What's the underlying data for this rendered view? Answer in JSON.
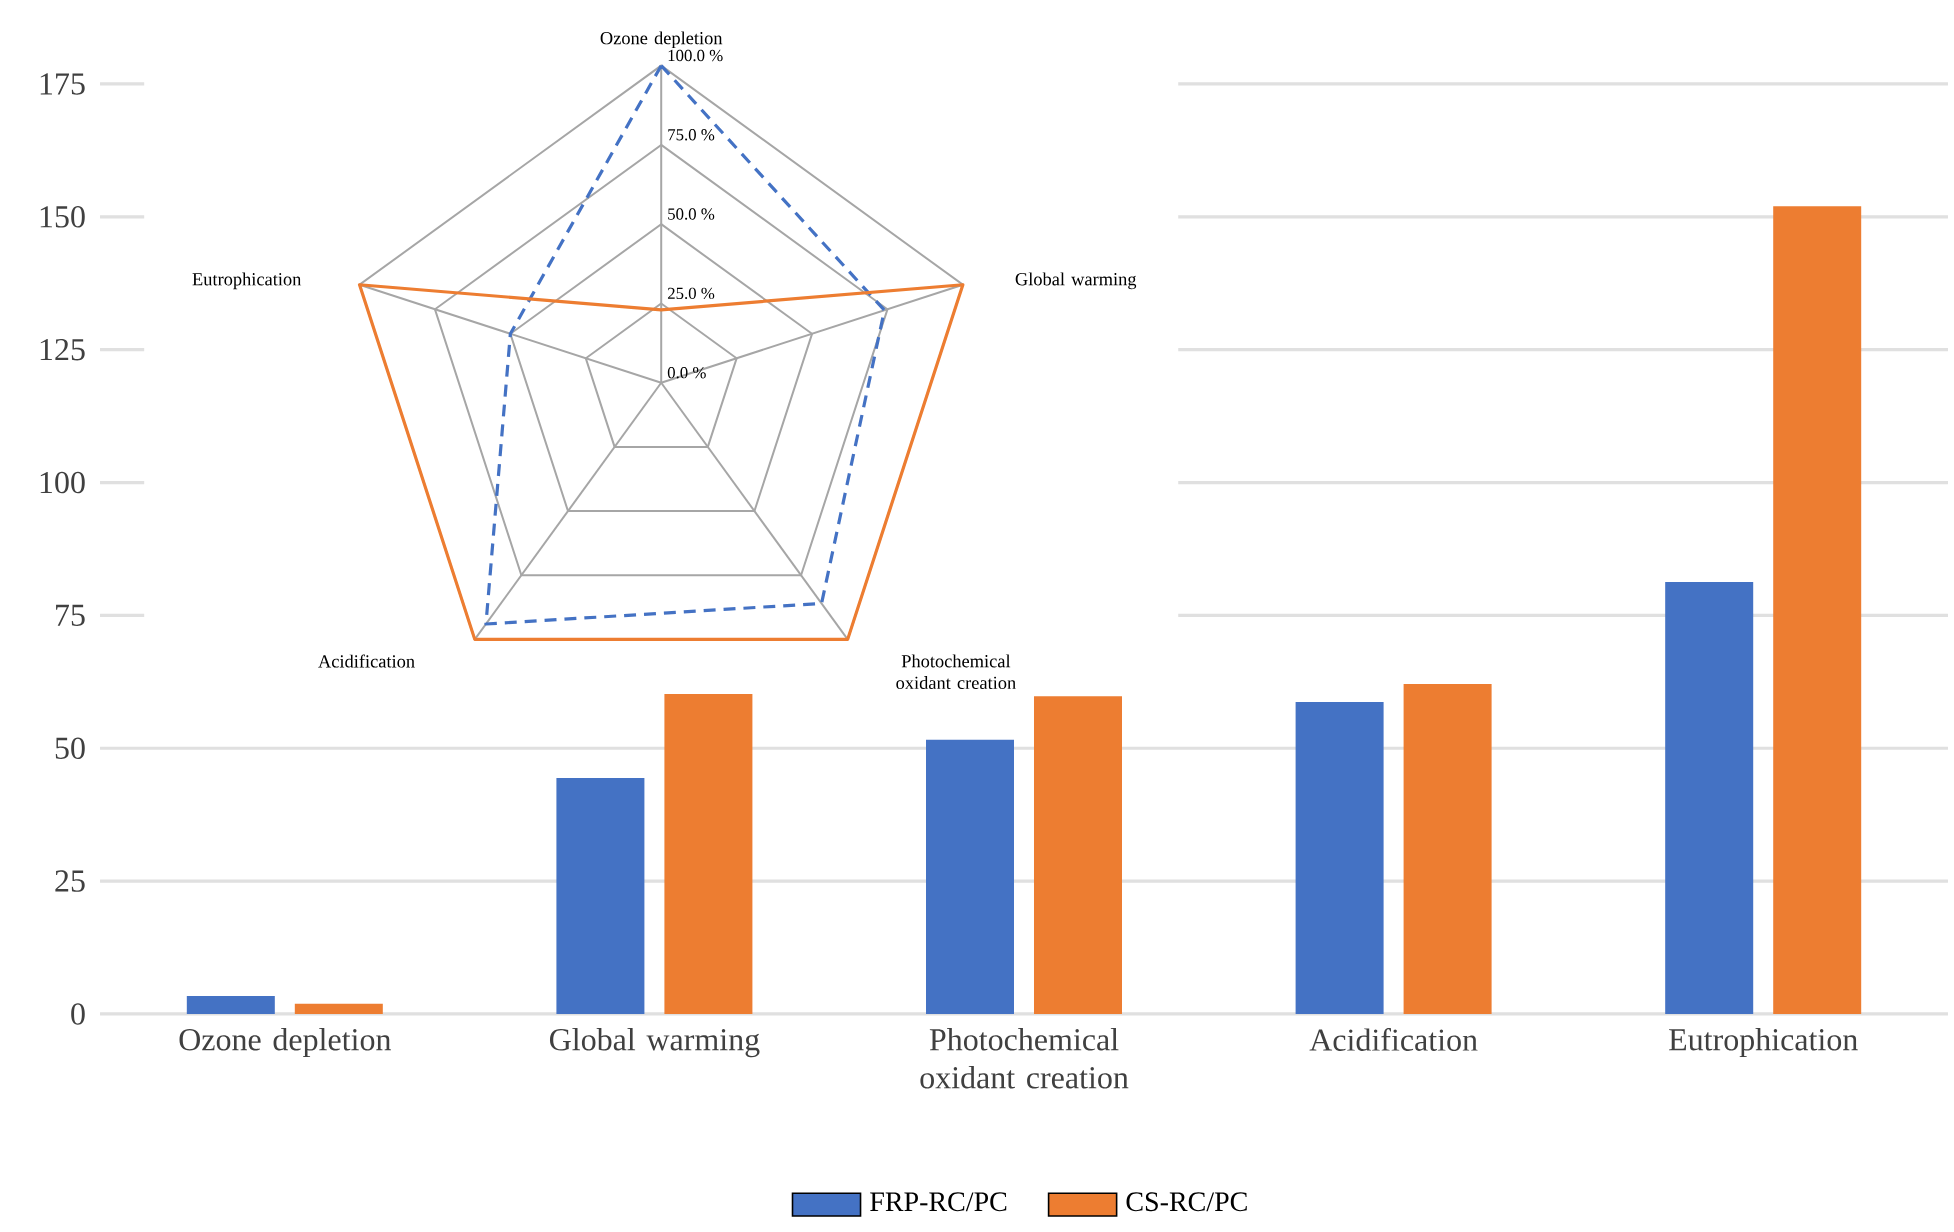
{
  "chart_data": [
    {
      "type": "bar",
      "categories": [
        "Ozone depletion",
        "Global warming",
        "Photochemical oxidant creation",
        "Acidification",
        "Eutrophication"
      ],
      "series": [
        {
          "name": "FRP-RC/PC",
          "color": "#4472c4",
          "values": [
            3.4,
            44.4,
            51.6,
            58.7,
            81.3
          ]
        },
        {
          "name": "CS-RC/PC",
          "color": "#ed7d31",
          "values": [
            1.9,
            60.2,
            59.8,
            62.1,
            152
          ]
        }
      ],
      "ylim": [
        0,
        175
      ],
      "yticks": [
        0,
        25,
        50,
        75,
        100,
        125,
        150,
        175
      ],
      "grid": "y",
      "legend": "bottom"
    },
    {
      "type": "radar",
      "categories": [
        "Ozone depletion",
        "Global warming",
        "Photochemical oxidant creation",
        "Acidification",
        "Eutrophication"
      ],
      "series": [
        {
          "color": "#4472c4",
          "line_style": "dashed",
          "values": [
            100,
            74,
            86,
            94,
            50
          ]
        },
        {
          "color": "#ed7d31",
          "line_style": "solid",
          "values": [
            23,
            100,
            100,
            100,
            100
          ]
        }
      ],
      "ylim": [
        0,
        100
      ],
      "yticks": [
        {
          "value": 0,
          "label": "0.0 %"
        },
        {
          "value": 25,
          "label": "25.0 %"
        },
        {
          "value": 50,
          "label": "50.0 %"
        },
        {
          "value": 75,
          "label": "75.0 %"
        },
        {
          "value": 100,
          "label": "100.0 %"
        }
      ],
      "grid": true
    }
  ]
}
